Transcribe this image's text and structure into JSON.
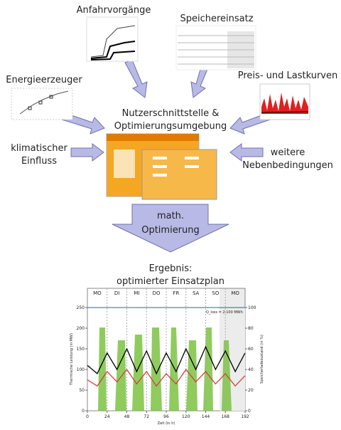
{
  "inputs": {
    "startup": "Anfahrvorgänge",
    "storage": "Speichereinsatz",
    "generators": "Energieerzeuger",
    "prices": "Preis- und Lastkurven",
    "climate": [
      "klimatischer",
      "Einfluss"
    ],
    "constraints": [
      "weitere",
      "Nebenbedingungen"
    ]
  },
  "center": [
    "Nutzerschnittstelle &",
    "Optimierungsumgebung"
  ],
  "optimization": [
    "math.",
    "Optimierung"
  ],
  "result": {
    "title": [
      "Ergebnis:",
      "optimierter Einsatzplan"
    ],
    "chart": {
      "type": "line",
      "days": [
        "MO",
        "DI",
        "MI",
        "DO",
        "FR",
        "SA",
        "SO",
        "MO"
      ],
      "annotation": "Q_loss = 2.100 MWh",
      "x_label": "Zeit (in h)",
      "y_label": "Thermische Leistung (in MW)",
      "y2_label": "Speicherladezustand (in %)",
      "x": [
        0,
        12,
        24,
        36,
        48,
        60,
        72,
        84,
        96,
        108,
        120,
        132,
        144,
        156,
        168,
        180,
        192
      ],
      "xlim": [
        0,
        192
      ],
      "xticks": [
        0,
        24,
        48,
        72,
        96,
        120,
        144,
        168,
        192
      ],
      "ylim": [
        0,
        250
      ],
      "yticks": [
        0,
        50,
        100,
        150,
        200,
        250
      ],
      "y2lim": [
        0,
        100
      ],
      "y2ticks": [
        0,
        20,
        40,
        60,
        80,
        100
      ],
      "series": [
        {
          "color": "#000000",
          "values": [
            110,
            90,
            140,
            100,
            150,
            95,
            145,
            90,
            140,
            95,
            150,
            100,
            155,
            100,
            145,
            95,
            140
          ]
        },
        {
          "color": "#d04040",
          "values": [
            75,
            60,
            95,
            70,
            100,
            65,
            95,
            60,
            90,
            65,
            100,
            70,
            95,
            65,
            90,
            60,
            85
          ]
        }
      ]
    }
  }
}
